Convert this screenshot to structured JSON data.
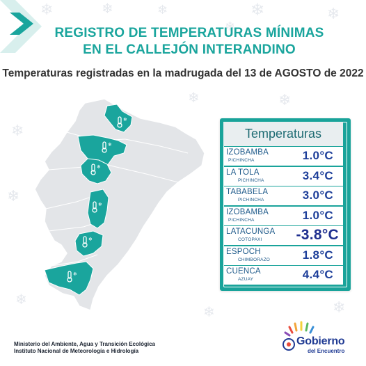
{
  "header": {
    "title_line1": "REGISTRO DE TEMPERATURAS MÍNIMAS",
    "title_line2": "EN EL CALLEJÓN INTERANDINO",
    "subtitle": "Temperaturas registradas en la madrugada del 13 de AGOSTO de 2022"
  },
  "panel": {
    "title": "Temperaturas",
    "stations": [
      {
        "name": "IZOBAMBA",
        "province": "PICHINCHA",
        "temp": "1.0°C"
      },
      {
        "name": "LA TOLA",
        "province": "PICHINCHA",
        "temp": "3.4°C"
      },
      {
        "name": "TABABELA",
        "province": "PICHINCHA",
        "temp": "3.0°C"
      },
      {
        "name": "IZOBAMBA",
        "province": "PICHINCHA",
        "temp": "1.0°C"
      },
      {
        "name": "LATACUNGA",
        "province": "COTOPAXI",
        "temp": "-3.8°C"
      },
      {
        "name": "ESPOCH",
        "province": "CHIMBORAZO",
        "temp": "1.8°C"
      },
      {
        "name": "CUENCA",
        "province": "AZUAY",
        "temp": "4.4°C"
      }
    ]
  },
  "footer": {
    "line1": "Ministerio del Ambiente, Agua y Transición Ecológica",
    "line2": "Instituto Nacional de Meteorología e Hidrología"
  },
  "logo": {
    "main": "Gobierno",
    "sub": "del Encuentro"
  },
  "colors": {
    "teal": "#1aa59d",
    "map_gray": "#e3e5e8",
    "map_highlight": "#1aa59d",
    "temp_blue": "#1e3f9a"
  },
  "icons": [
    "thermometer-snow-icon",
    "snowflake-icon",
    "chevron-icon",
    "gobierno-logo"
  ]
}
